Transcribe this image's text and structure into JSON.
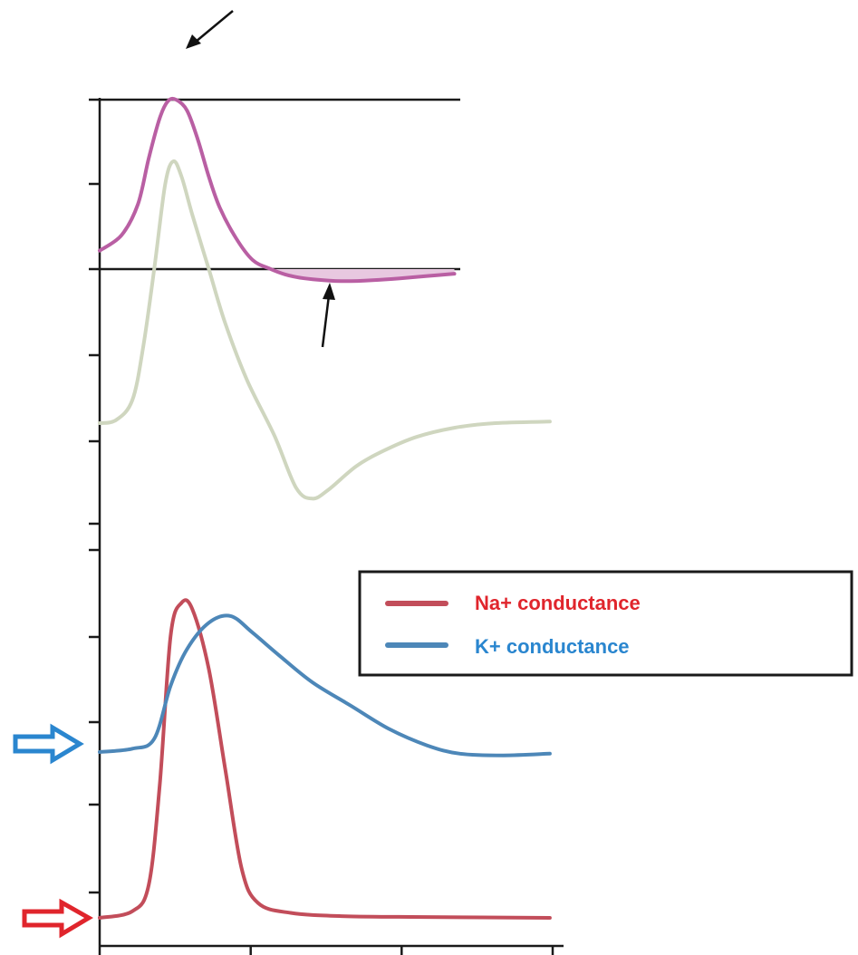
{
  "chart_data": {
    "type": "line",
    "title": "",
    "xlabel": "",
    "ylabel": "",
    "grid": false,
    "legend_position": "middle-right",
    "x_range": [
      0,
      17
    ],
    "x_ticks_count": 4,
    "panels": [
      {
        "name": "top",
        "series": [
          {
            "name": "",
            "color": "#b95fa3",
            "fill": "#e8c8e0",
            "shaded_regions": "above-upper-line and below-lower-line",
            "points": [
              [
                0,
                1.2
              ],
              [
                0.8,
                2.2
              ],
              [
                1.4,
                4.2
              ],
              [
                1.8,
                7.2
              ],
              [
                2.2,
                9.8
              ],
              [
                2.5,
                10.9
              ],
              [
                2.8,
                11.0
              ],
              [
                3.2,
                10.3
              ],
              [
                3.6,
                8.4
              ],
              [
                4.0,
                6.0
              ],
              [
                4.4,
                4.0
              ],
              [
                5.0,
                2.0
              ],
              [
                5.6,
                0.6
              ],
              [
                6.2,
                0.05
              ],
              [
                6.8,
                -0.35
              ],
              [
                7.5,
                -0.6
              ],
              [
                8.2,
                -0.72
              ],
              [
                9.0,
                -0.78
              ],
              [
                10,
                -0.72
              ],
              [
                11,
                -0.6
              ],
              [
                12,
                -0.45
              ],
              [
                13,
                -0.3
              ]
            ]
          },
          {
            "name": "",
            "color": "#cfd6bf",
            "points": [
              [
                0,
                -10
              ],
              [
                0.6,
                -9.8
              ],
              [
                1.2,
                -8.5
              ],
              [
                1.6,
                -5
              ],
              [
                2.0,
                0
              ],
              [
                2.4,
                5.5
              ],
              [
                2.7,
                7.0
              ],
              [
                3.0,
                6.0
              ],
              [
                3.4,
                3.5
              ],
              [
                4.0,
                0
              ],
              [
                4.6,
                -3.5
              ],
              [
                5.4,
                -7.2
              ],
              [
                6.4,
                -10.8
              ],
              [
                7.2,
                -14.2
              ],
              [
                7.8,
                -14.9
              ],
              [
                8.4,
                -14.3
              ],
              [
                9.4,
                -12.8
              ],
              [
                10.4,
                -11.8
              ],
              [
                11.6,
                -10.9
              ],
              [
                13,
                -10.3
              ],
              [
                14.5,
                -10.0
              ],
              [
                16.5,
                -9.9
              ]
            ]
          }
        ]
      },
      {
        "name": "bottom",
        "series": [
          {
            "name": "Na+ conductance",
            "color": "#c24d5a",
            "points": [
              [
                0,
                0
              ],
              [
                1.2,
                0.4
              ],
              [
                1.8,
                2
              ],
              [
                2.2,
                8
              ],
              [
                2.6,
                17
              ],
              [
                3.0,
                19
              ],
              [
                3.4,
                18.6
              ],
              [
                4.0,
                15
              ],
              [
                4.6,
                9
              ],
              [
                5.2,
                3
              ],
              [
                5.8,
                0.9
              ],
              [
                7.0,
                0.3
              ],
              [
                9,
                0.1
              ],
              [
                12,
                0.05
              ],
              [
                16.5,
                0
              ]
            ]
          },
          {
            "name": "K+ conductance",
            "color": "#4d87b8",
            "points": [
              [
                0,
                10
              ],
              [
                1.2,
                10.2
              ],
              [
                2.0,
                10.8
              ],
              [
                2.6,
                14
              ],
              [
                3.2,
                16.2
              ],
              [
                4.0,
                17.8
              ],
              [
                4.8,
                18.2
              ],
              [
                5.6,
                17.2
              ],
              [
                6.6,
                15.8
              ],
              [
                7.8,
                14.2
              ],
              [
                9.2,
                12.8
              ],
              [
                10.6,
                11.4
              ],
              [
                12.0,
                10.4
              ],
              [
                13.2,
                9.9
              ],
              [
                14.8,
                9.8
              ],
              [
                16.5,
                9.9
              ]
            ]
          }
        ]
      }
    ]
  }
}
